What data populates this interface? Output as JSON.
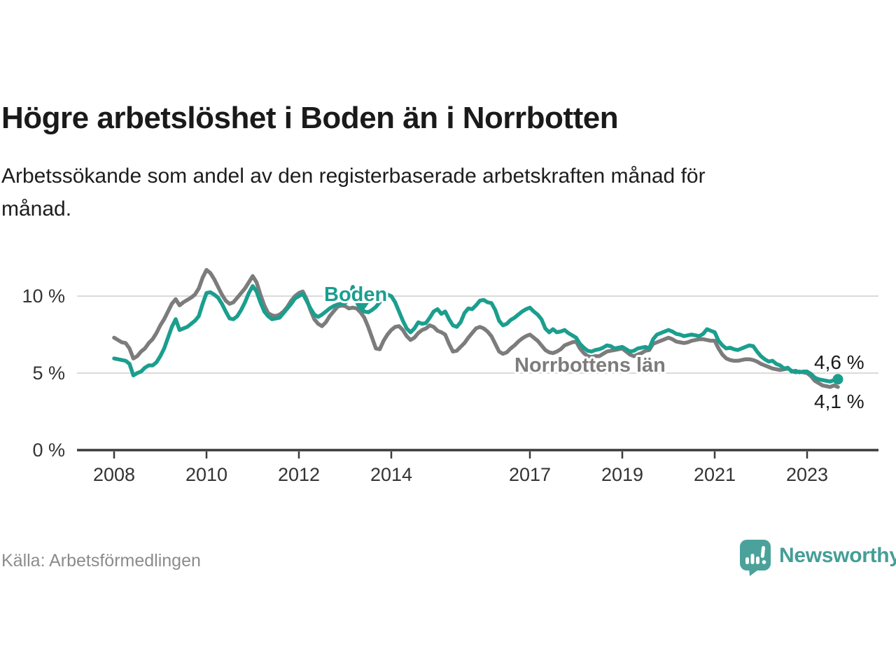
{
  "header": {
    "title": "Högre arbetslöshet i Boden än i Norrbotten",
    "subtitle_line1": "Arbetssökande som andel av den registerbaserade arbetskraften månad för",
    "subtitle_line2": "månad."
  },
  "chart_data": {
    "type": "line",
    "unit": "%",
    "title": "Högre arbetslöshet i Boden än i Norrbotten",
    "subtitle": "Arbetssökande som andel av den registerbaserade arbetskraften månad för månad.",
    "x_start_year": 2008,
    "x_step_months": 1,
    "xlim": [
      2007.2,
      2024.55
    ],
    "ylim": [
      0,
      12.2
    ],
    "grid": "horizontal-light",
    "legend_position": "inline-labels",
    "y_ticks": [
      {
        "label": "10 %",
        "value": 10
      },
      {
        "label": "5 %",
        "value": 5
      },
      {
        "label": "0 %",
        "value": 0
      }
    ],
    "x_ticks": [
      {
        "label": "2008",
        "year": 2008
      },
      {
        "label": "2010",
        "year": 2010
      },
      {
        "label": "2012",
        "year": 2012
      },
      {
        "label": "2014",
        "year": 2014
      },
      {
        "label": "2017",
        "year": 2017
      },
      {
        "label": "2019",
        "year": 2019
      },
      {
        "label": "2021",
        "year": 2021
      },
      {
        "label": "2023",
        "year": 2023
      }
    ],
    "series": [
      {
        "name": "Norrbottens län",
        "color": "#7C7C7C",
        "end_label": "4,1 %",
        "end_dot": false,
        "values": [
          7.3,
          7.15,
          7.0,
          6.95,
          6.6,
          5.95,
          6.1,
          6.4,
          6.6,
          6.95,
          7.2,
          7.6,
          8.1,
          8.5,
          9.0,
          9.5,
          9.8,
          9.4,
          9.6,
          9.75,
          9.9,
          10.1,
          10.5,
          11.2,
          11.7,
          11.5,
          11.1,
          10.6,
          10.1,
          9.7,
          9.5,
          9.6,
          9.9,
          10.2,
          10.5,
          10.9,
          11.3,
          10.9,
          10.1,
          9.4,
          8.9,
          8.75,
          8.7,
          8.8,
          9.0,
          9.3,
          9.7,
          10.0,
          10.2,
          10.3,
          9.8,
          9.1,
          8.5,
          8.2,
          8.05,
          8.3,
          8.7,
          9.0,
          9.3,
          9.4,
          9.35,
          9.2,
          9.25,
          9.2,
          8.95,
          8.6,
          8.0,
          7.3,
          6.6,
          6.55,
          7.1,
          7.5,
          7.8,
          8.0,
          8.05,
          7.8,
          7.4,
          7.15,
          7.3,
          7.6,
          7.8,
          7.9,
          8.1,
          8.0,
          7.75,
          7.65,
          7.5,
          6.9,
          6.4,
          6.45,
          6.7,
          6.95,
          7.3,
          7.6,
          7.9,
          8.0,
          7.9,
          7.7,
          7.4,
          6.9,
          6.4,
          6.25,
          6.35,
          6.6,
          6.8,
          7.05,
          7.25,
          7.4,
          7.5,
          7.3,
          7.1,
          6.8,
          6.5,
          6.35,
          6.3,
          6.4,
          6.55,
          6.8,
          6.9,
          7.0,
          7.05,
          6.6,
          6.3,
          6.1,
          6.05,
          6.1,
          6.1,
          6.25,
          6.4,
          6.45,
          6.5,
          6.55,
          6.6,
          6.4,
          6.2,
          6.1,
          6.2,
          6.3,
          6.45,
          6.5,
          6.9,
          7.0,
          7.1,
          7.2,
          7.3,
          7.2,
          7.05,
          7.0,
          6.95,
          7.0,
          7.1,
          7.15,
          7.2,
          7.2,
          7.15,
          7.1,
          7.1,
          6.6,
          6.2,
          5.95,
          5.85,
          5.8,
          5.8,
          5.85,
          5.9,
          5.9,
          5.85,
          5.75,
          5.6,
          5.5,
          5.4,
          5.3,
          5.25,
          5.2,
          5.25,
          5.3,
          5.15,
          5.05,
          5.1,
          5.05,
          5.0,
          4.8,
          4.5,
          4.35,
          4.2,
          4.15,
          4.1,
          4.2,
          4.1
        ]
      },
      {
        "name": "Boden",
        "color": "#1B9E8E",
        "end_label": "4,6 %",
        "end_dot": true,
        "values": [
          5.95,
          5.9,
          5.85,
          5.8,
          5.6,
          4.85,
          5.0,
          5.1,
          5.35,
          5.5,
          5.5,
          5.7,
          6.1,
          6.6,
          7.3,
          8.0,
          8.5,
          7.8,
          7.9,
          8.0,
          8.2,
          8.4,
          8.7,
          9.5,
          10.2,
          10.25,
          10.1,
          9.9,
          9.5,
          9.0,
          8.55,
          8.5,
          8.7,
          9.1,
          9.6,
          10.2,
          10.65,
          10.3,
          9.6,
          9.0,
          8.7,
          8.5,
          8.55,
          8.6,
          8.9,
          9.2,
          9.5,
          9.85,
          10.0,
          10.15,
          9.7,
          9.2,
          8.8,
          8.65,
          8.8,
          9.0,
          9.2,
          9.35,
          9.45,
          9.5,
          9.55,
          9.8,
          10.6,
          9.6,
          9.2,
          9.0,
          8.95,
          9.1,
          9.3,
          9.6,
          9.9,
          10.1,
          10.0,
          9.6,
          9.0,
          8.4,
          7.9,
          7.65,
          7.9,
          8.3,
          8.2,
          8.25,
          8.6,
          9.0,
          9.15,
          8.85,
          9.0,
          8.5,
          8.1,
          8.0,
          8.3,
          8.9,
          9.2,
          9.15,
          9.4,
          9.7,
          9.75,
          9.6,
          9.55,
          9.1,
          8.4,
          8.1,
          8.2,
          8.45,
          8.6,
          8.8,
          9.0,
          9.15,
          9.25,
          9.0,
          8.8,
          8.5,
          7.9,
          7.65,
          7.85,
          7.65,
          7.7,
          7.8,
          7.6,
          7.45,
          7.3,
          6.9,
          6.65,
          6.45,
          6.4,
          6.5,
          6.55,
          6.65,
          6.8,
          6.75,
          6.6,
          6.65,
          6.7,
          6.55,
          6.4,
          6.45,
          6.6,
          6.65,
          6.7,
          6.6,
          7.2,
          7.5,
          7.6,
          7.7,
          7.8,
          7.7,
          7.55,
          7.5,
          7.4,
          7.45,
          7.5,
          7.45,
          7.4,
          7.55,
          7.85,
          7.75,
          7.65,
          7.1,
          6.8,
          6.6,
          6.65,
          6.55,
          6.5,
          6.6,
          6.7,
          6.8,
          6.75,
          6.4,
          6.1,
          5.9,
          5.75,
          5.8,
          5.6,
          5.5,
          5.3,
          5.35,
          5.1,
          5.15,
          5.05,
          5.1,
          5.1,
          4.95,
          4.7,
          4.6,
          4.55,
          4.5,
          4.45,
          4.55,
          4.6
        ]
      }
    ],
    "colors": {
      "boden_teal": "#1B9E8E",
      "norrbotten_gray": "#7C7C7C",
      "gridline": "#DBDBDB",
      "axis": "#3B3B3B",
      "axis_text": "#333333"
    }
  },
  "footer": {
    "source": "Källa: Arbetsförmedlingen",
    "brand": "Newsworthy"
  }
}
